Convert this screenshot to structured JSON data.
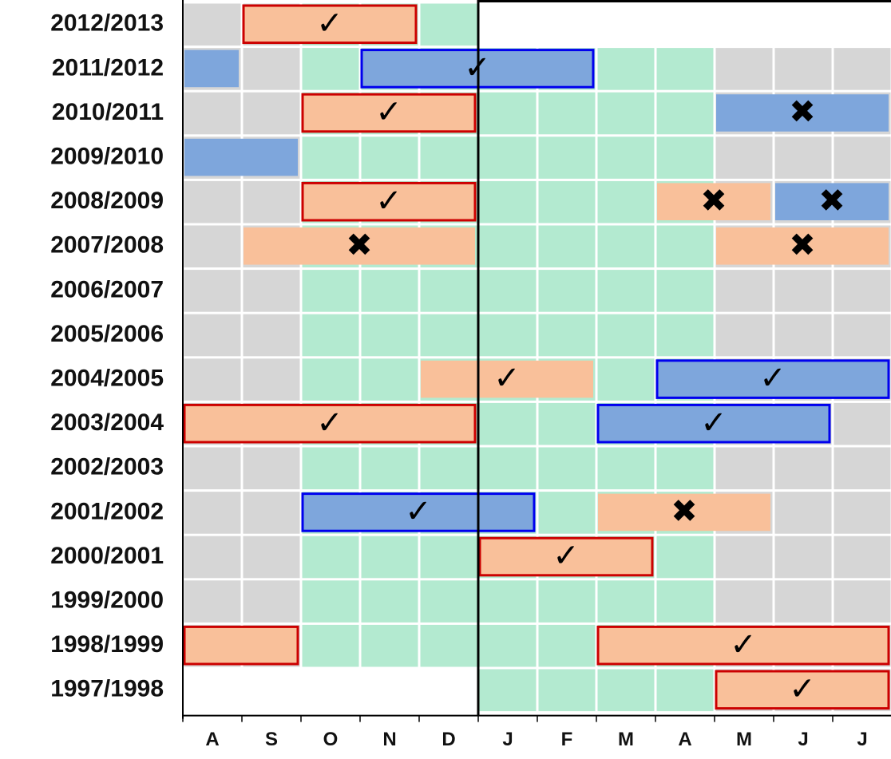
{
  "chart_data": {
    "type": "gantt",
    "months": [
      "A",
      "S",
      "O",
      "N",
      "D",
      "J",
      "F",
      "M",
      "A",
      "M",
      "J",
      "J"
    ],
    "xlim": [
      0,
      12
    ],
    "green_months": [
      2,
      9
    ],
    "colors": {
      "orange": "#f9c09a",
      "blue": "#7ea6dc",
      "green": "#b3ead0",
      "gray": "#d6d6d6",
      "red_border": "#cc0000",
      "blue_border": "#0000ee"
    },
    "rows": [
      {
        "label": "2012/2013",
        "from": 0,
        "to": 5,
        "bars": [
          {
            "start": 1,
            "end": 4,
            "fill": "orange",
            "border": "red_border",
            "symbol": "✓"
          }
        ]
      },
      {
        "label": "2011/2012",
        "bars": [
          {
            "start": 0,
            "end": 1,
            "fill": "blue"
          },
          {
            "start": 3,
            "end": 7,
            "fill": "blue",
            "border": "blue_border",
            "symbol": "✓"
          }
        ]
      },
      {
        "label": "2010/2011",
        "bars": [
          {
            "start": 2,
            "end": 5,
            "fill": "orange",
            "border": "red_border",
            "symbol": "✓"
          },
          {
            "start": 9,
            "end": 12,
            "fill": "blue",
            "symbol": "✖"
          }
        ]
      },
      {
        "label": "2009/2010",
        "bars": [
          {
            "start": 0,
            "end": 2,
            "fill": "blue"
          }
        ]
      },
      {
        "label": "2008/2009",
        "bars": [
          {
            "start": 2,
            "end": 5,
            "fill": "orange",
            "border": "red_border",
            "symbol": "✓"
          },
          {
            "start": 8,
            "end": 10,
            "fill": "orange",
            "symbol": "✖"
          },
          {
            "start": 10,
            "end": 12,
            "fill": "blue",
            "symbol": "✖"
          }
        ]
      },
      {
        "label": "2007/2008",
        "bars": [
          {
            "start": 1,
            "end": 5,
            "fill": "orange",
            "symbol": "✖"
          },
          {
            "start": 9,
            "end": 12,
            "fill": "orange",
            "symbol": "✖"
          }
        ]
      },
      {
        "label": "2006/2007",
        "bars": []
      },
      {
        "label": "2005/2006",
        "bars": []
      },
      {
        "label": "2004/2005",
        "bars": [
          {
            "start": 4,
            "end": 7,
            "fill": "orange",
            "symbol": "✓"
          },
          {
            "start": 8,
            "end": 12,
            "fill": "blue",
            "border": "blue_border",
            "symbol": "✓"
          }
        ]
      },
      {
        "label": "2003/2004",
        "bars": [
          {
            "start": 0,
            "end": 5,
            "fill": "orange",
            "border": "red_border",
            "symbol": "✓"
          },
          {
            "start": 7,
            "end": 11,
            "fill": "blue",
            "border": "blue_border",
            "symbol": "✓"
          }
        ]
      },
      {
        "label": "2002/2003",
        "bars": []
      },
      {
        "label": "2001/2002",
        "bars": [
          {
            "start": 2,
            "end": 6,
            "fill": "blue",
            "border": "blue_border",
            "symbol": "✓"
          },
          {
            "start": 7,
            "end": 10,
            "fill": "orange",
            "symbol": "✖"
          }
        ]
      },
      {
        "label": "2000/2001",
        "bars": [
          {
            "start": 5,
            "end": 8,
            "fill": "orange",
            "border": "red_border",
            "symbol": "✓"
          }
        ]
      },
      {
        "label": "1999/2000",
        "bars": []
      },
      {
        "label": "1998/1999",
        "bars": [
          {
            "start": 0,
            "end": 2,
            "fill": "orange",
            "border": "red_border"
          },
          {
            "start": 7,
            "end": 12,
            "fill": "orange",
            "border": "red_border",
            "symbol": "✓"
          }
        ]
      },
      {
        "label": "1997/1998",
        "from": 5,
        "to": 12,
        "bars": [
          {
            "start": 9,
            "end": 12,
            "fill": "orange",
            "border": "red_border",
            "symbol": "✓"
          }
        ]
      }
    ]
  }
}
